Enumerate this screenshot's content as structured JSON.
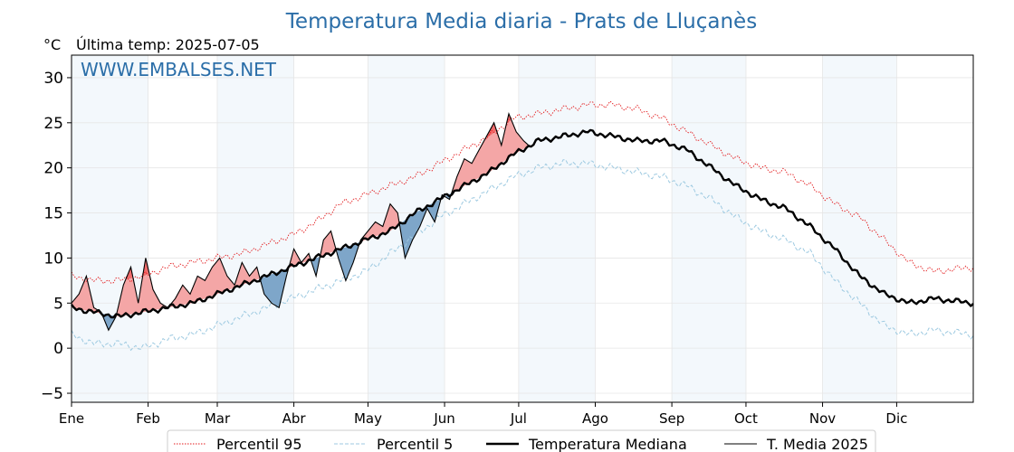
{
  "chart_data": {
    "type": "line",
    "title": "Temperatura Media diaria - Prats de Lluçanès",
    "unit_label": "°C",
    "subtitle": "Última temp: 2025-07-05",
    "watermark": "WWW.EMBALSES.NET",
    "x_unit": "day_of_year",
    "xlim": [
      1,
      366
    ],
    "ylim": [
      -6,
      32.5
    ],
    "yticks": [
      -5,
      0,
      5,
      10,
      15,
      20,
      25,
      30
    ],
    "ytick_labels": [
      "−5",
      "0",
      "5",
      "10",
      "15",
      "20",
      "25",
      "30"
    ],
    "months": [
      {
        "label": "Ene",
        "start": 1
      },
      {
        "label": "Feb",
        "start": 32
      },
      {
        "label": "Mar",
        "start": 60
      },
      {
        "label": "Abr",
        "start": 91
      },
      {
        "label": "May",
        "start": 121
      },
      {
        "label": "Jun",
        "start": 152
      },
      {
        "label": "Jul",
        "start": 182
      },
      {
        "label": "Ago",
        "start": 213
      },
      {
        "label": "Sep",
        "start": 244
      },
      {
        "label": "Oct",
        "start": 274
      },
      {
        "label": "Nov",
        "start": 305
      },
      {
        "label": "Dic",
        "start": 335
      }
    ],
    "grid": true,
    "legend_position": "bottom-center",
    "series": [
      {
        "name": "Percentil 95",
        "color": "#e31a1c",
        "style": "dotted",
        "x": [
          1,
          10,
          20,
          30,
          40,
          50,
          60,
          70,
          80,
          90,
          100,
          110,
          120,
          130,
          140,
          150,
          160,
          170,
          180,
          190,
          200,
          210,
          220,
          230,
          240,
          250,
          260,
          270,
          280,
          290,
          300,
          310,
          320,
          330,
          340,
          350,
          366
        ],
        "y": [
          8,
          7.5,
          7.5,
          8,
          9,
          9.5,
          10,
          10.5,
          11.5,
          12.5,
          14,
          16,
          17,
          18,
          19,
          20.5,
          22,
          23.5,
          25.5,
          26,
          26.5,
          27,
          27,
          26.5,
          25.5,
          24,
          22.5,
          21,
          20,
          19.5,
          18,
          16,
          14.5,
          12,
          9.5,
          8.5,
          9
        ]
      },
      {
        "name": "Percentil 5",
        "color": "#9ecae1",
        "style": "dashed",
        "x": [
          1,
          10,
          20,
          30,
          40,
          50,
          60,
          70,
          80,
          90,
          100,
          110,
          120,
          130,
          140,
          150,
          160,
          170,
          180,
          190,
          200,
          210,
          220,
          230,
          240,
          250,
          260,
          270,
          280,
          290,
          300,
          310,
          320,
          330,
          340,
          350,
          366
        ],
        "y": [
          1.5,
          0.5,
          0.5,
          0,
          1,
          1.5,
          2.5,
          3.5,
          4.5,
          5.5,
          6.5,
          7.5,
          8.5,
          10.5,
          12.5,
          14.5,
          16,
          17.5,
          19,
          20,
          20.5,
          20.5,
          20,
          19.5,
          19,
          18,
          16.5,
          14.5,
          13,
          12,
          10.5,
          7.5,
          5,
          2.5,
          1.5,
          2,
          1.5
        ]
      },
      {
        "name": "Temperatura Mediana",
        "color": "#000000",
        "style": "thick",
        "x": [
          1,
          10,
          20,
          30,
          40,
          50,
          60,
          70,
          80,
          90,
          100,
          110,
          120,
          130,
          140,
          150,
          160,
          170,
          180,
          190,
          200,
          210,
          220,
          230,
          240,
          250,
          260,
          270,
          280,
          290,
          300,
          310,
          320,
          330,
          340,
          350,
          366
        ],
        "y": [
          4.5,
          4,
          3.5,
          4,
          4.5,
          5,
          6,
          7,
          8,
          9,
          10,
          11,
          12,
          13,
          15,
          16.5,
          18,
          19.5,
          21.5,
          23,
          23.5,
          24,
          23.5,
          23,
          23,
          22,
          20,
          18,
          16.5,
          15.5,
          13.5,
          11,
          8,
          6,
          5,
          5.5,
          5
        ]
      },
      {
        "name": "T. Media 2025",
        "color": "#000000",
        "style": "thin",
        "x": [
          1,
          4,
          7,
          10,
          13,
          16,
          19,
          22,
          25,
          28,
          31,
          34,
          37,
          40,
          43,
          46,
          49,
          52,
          55,
          58,
          61,
          64,
          67,
          70,
          73,
          76,
          79,
          82,
          85,
          88,
          91,
          94,
          97,
          100,
          103,
          106,
          109,
          112,
          115,
          118,
          121,
          124,
          127,
          130,
          133,
          136,
          139,
          142,
          145,
          148,
          151,
          154,
          157,
          160,
          163,
          166,
          169,
          172,
          175,
          178,
          181,
          184,
          186
        ],
        "y": [
          5,
          6,
          8,
          4.5,
          4,
          2,
          3.5,
          7,
          9,
          5,
          10,
          6.5,
          5,
          4.5,
          5.5,
          7,
          6,
          8,
          7.5,
          9,
          10,
          8,
          7,
          9.5,
          8,
          9,
          6,
          5,
          4.5,
          8,
          11,
          9.5,
          10.5,
          8,
          12,
          13,
          10,
          7.5,
          9.5,
          12,
          13,
          14,
          13.5,
          16,
          15,
          10,
          12,
          13.5,
          15.5,
          14,
          17,
          16.5,
          19,
          21,
          20.5,
          22,
          23.5,
          25,
          22.5,
          26,
          24,
          23,
          22.5
        ]
      }
    ],
    "legend": [
      {
        "label": "Percentil 95"
      },
      {
        "label": "Percentil 5"
      },
      {
        "label": "Temperatura Mediana"
      },
      {
        "label": "T. Media 2025"
      }
    ]
  }
}
